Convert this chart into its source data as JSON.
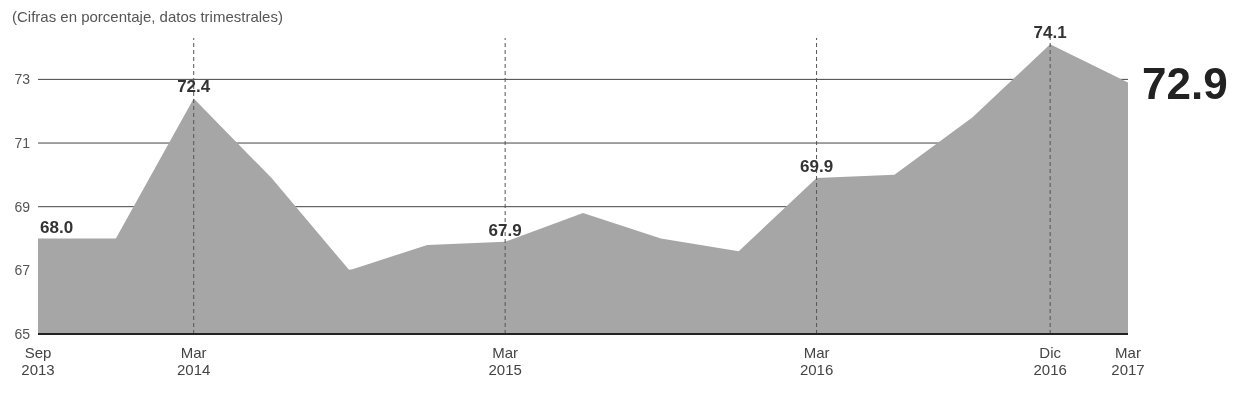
{
  "chart_data": {
    "type": "area",
    "subtitle": "(Cifras en porcentaje, datos trimestrales)",
    "categories": [
      "Sep 2013",
      null,
      "Mar 2014",
      null,
      null,
      null,
      "Mar 2015",
      null,
      null,
      null,
      "Mar 2016",
      null,
      null,
      "Dic 2016",
      "Mar 2017"
    ],
    "series": [
      {
        "color": "#a6a6a6",
        "values": [
          68.0,
          68.0,
          72.4,
          69.9,
          67.0,
          67.8,
          67.9,
          68.8,
          68.0,
          67.6,
          69.9,
          70.0,
          71.8,
          74.1,
          72.9
        ]
      }
    ],
    "value_labels": [
      "68.0",
      null,
      "72.4",
      null,
      null,
      null,
      "67.9",
      null,
      null,
      null,
      "69.9",
      null,
      null,
      "74.1",
      "72.9"
    ],
    "ylim": [
      65,
      74.3
    ],
    "yticks": [
      65,
      67,
      69,
      71,
      73
    ],
    "grid": "y",
    "ref_lines": [
      {
        "axis": "x",
        "value": "Mar 2014",
        "line_style": "dashed",
        "color": "#555555"
      },
      {
        "axis": "x",
        "value": "Mar 2015",
        "line_style": "dashed",
        "color": "#555555"
      },
      {
        "axis": "x",
        "value": "Mar 2016",
        "line_style": "dashed",
        "color": "#555555"
      },
      {
        "axis": "x",
        "value": "Dic 2016",
        "line_style": "dashed",
        "color": "#555555"
      }
    ]
  }
}
